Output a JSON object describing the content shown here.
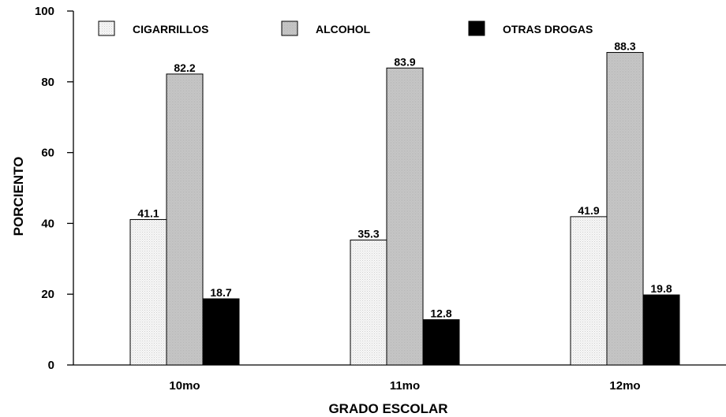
{
  "chart_data": {
    "type": "bar",
    "title": "",
    "xlabel": "GRADO ESCOLAR",
    "ylabel": "PORCIENTO",
    "ylim": [
      0,
      100
    ],
    "yticks": [
      "0",
      "20",
      "40",
      "60",
      "80",
      "100"
    ],
    "categories": [
      "10mo",
      "11mo",
      "12mo"
    ],
    "legend_position": "top",
    "grid": false,
    "series": [
      {
        "name": "CIGARRILLOS",
        "values": [
          41.1,
          35.3,
          41.9
        ],
        "labels": [
          "41.1",
          "35.3",
          "41.9"
        ],
        "color": "#f0f0f0"
      },
      {
        "name": "ALCOHOL",
        "values": [
          82.2,
          83.9,
          88.3
        ],
        "labels": [
          "82.2",
          "83.9",
          "88.3"
        ],
        "color": "#c4c4c4"
      },
      {
        "name": "OTRAS DROGAS",
        "values": [
          18.7,
          12.8,
          19.8
        ],
        "labels": [
          "18.7",
          "12.8",
          "19.8"
        ],
        "color": "#000000"
      }
    ]
  }
}
